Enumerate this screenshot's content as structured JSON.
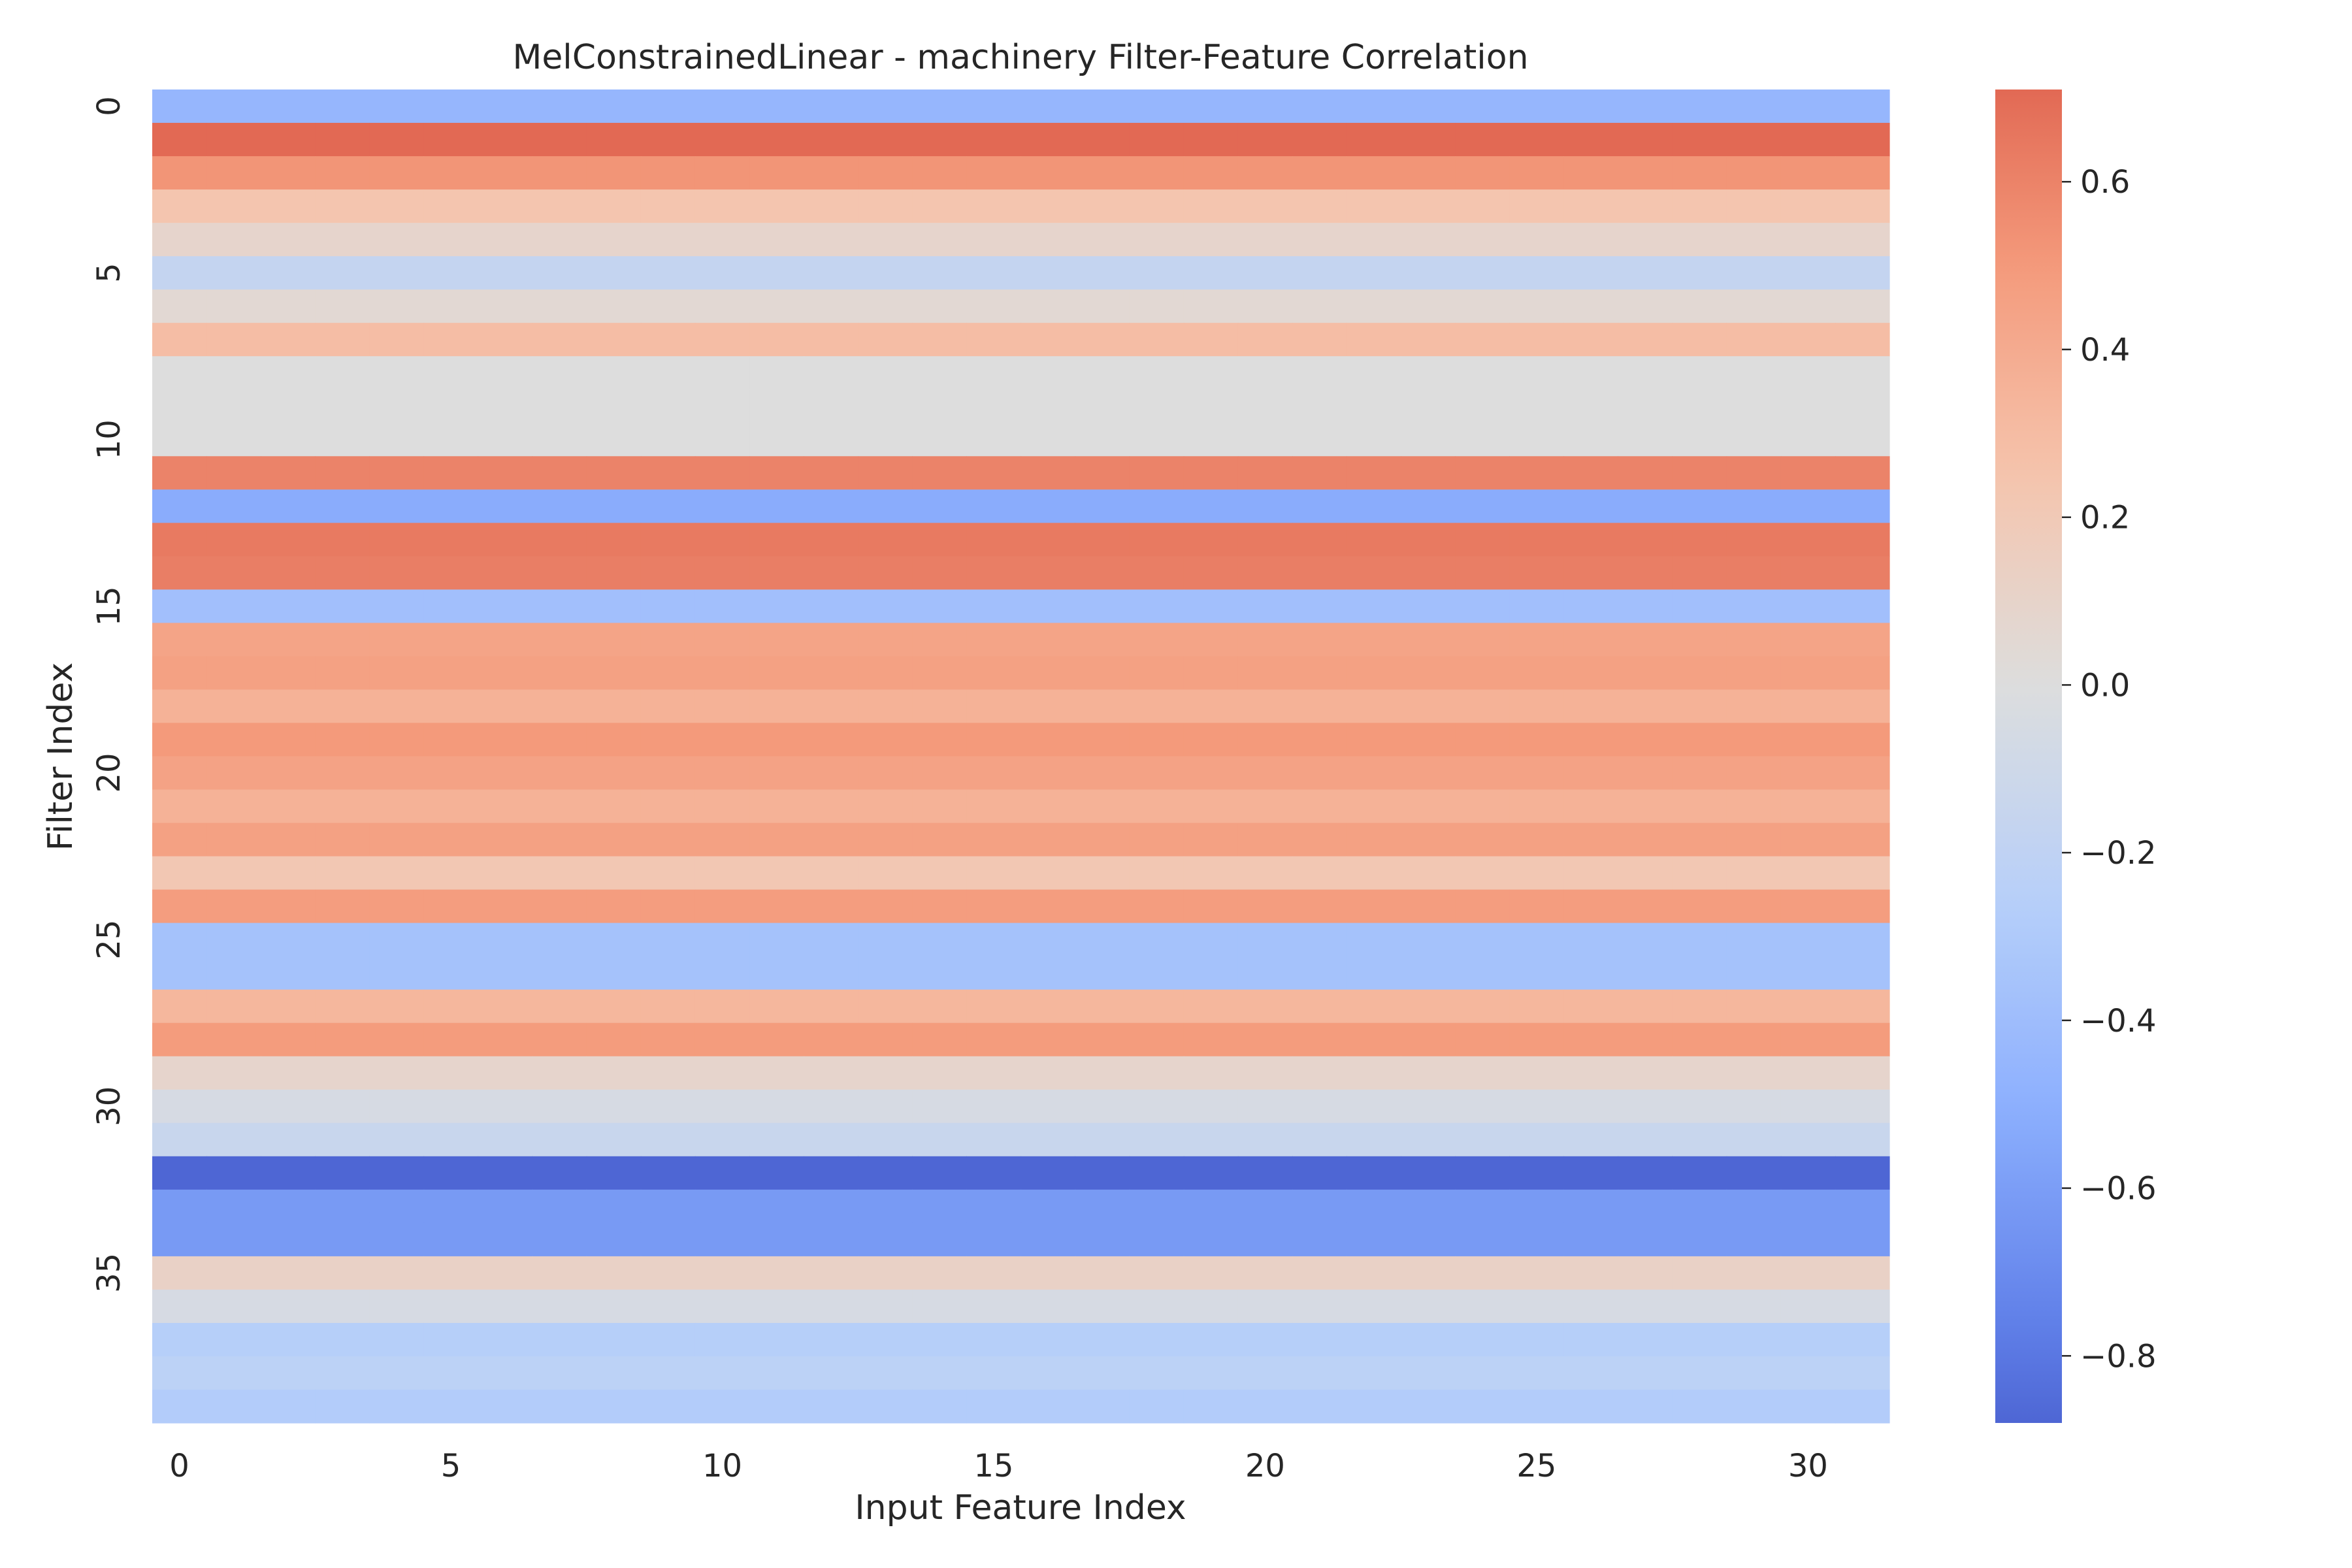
{
  "chart_data": {
    "type": "heatmap",
    "title": "MelConstrainedLinear - machinery Filter-Feature Correlation",
    "xlabel": "Input Feature Index",
    "ylabel": "Filter Index",
    "n_columns": 32,
    "n_rows": 40,
    "x_tick_labels": [
      "0",
      "5",
      "10",
      "15",
      "20",
      "25",
      "30"
    ],
    "x_tick_values": [
      0,
      5,
      10,
      15,
      20,
      25,
      30
    ],
    "y_tick_labels": [
      "0",
      "5",
      "10",
      "15",
      "20",
      "25",
      "30",
      "35"
    ],
    "y_tick_values": [
      0,
      5,
      10,
      15,
      20,
      25,
      30,
      35
    ],
    "row_values": [
      -0.45,
      0.71,
      0.52,
      0.24,
      0.09,
      -0.17,
      0.05,
      0.29,
      0.0,
      0.0,
      0.0,
      0.6,
      -0.52,
      0.64,
      0.62,
      -0.38,
      0.44,
      0.46,
      0.36,
      0.5,
      0.45,
      0.36,
      0.46,
      0.22,
      0.48,
      -0.36,
      -0.36,
      0.33,
      0.49,
      0.09,
      -0.05,
      -0.14,
      -0.88,
      -0.62,
      -0.62,
      0.12,
      -0.05,
      -0.26,
      -0.22,
      -0.28
    ],
    "colorbar": {
      "colormap": "coolwarm",
      "vmin": -0.88,
      "vmax": 0.71,
      "tick_values": [
        0.6,
        0.4,
        0.2,
        0.0,
        -0.2,
        -0.4,
        -0.6,
        -0.8
      ],
      "tick_labels": [
        "0.6",
        "0.4",
        "0.2",
        "0.0",
        "−0.2",
        "−0.4",
        "−0.6",
        "−0.8"
      ]
    }
  }
}
